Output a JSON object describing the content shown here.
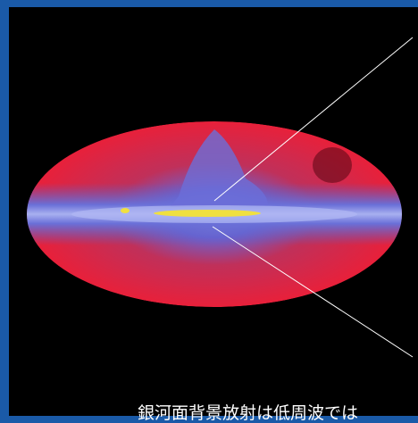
{
  "caption": "銀河面背景放射は低周波では"
}
